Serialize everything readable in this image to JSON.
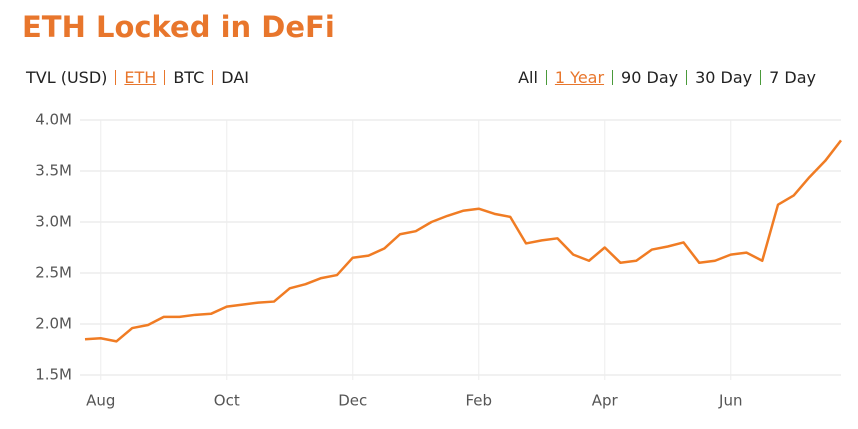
{
  "header": {
    "title": "ETH Locked in DeFi",
    "asset_tabs": [
      {
        "label": "TVL (USD)",
        "active": false
      },
      {
        "label": "ETH",
        "active": true
      },
      {
        "label": "BTC",
        "active": false
      },
      {
        "label": "DAI",
        "active": false
      }
    ],
    "range_tabs": [
      {
        "label": "All",
        "active": false
      },
      {
        "label": "1 Year",
        "active": true
      },
      {
        "label": "90 Day",
        "active": false
      },
      {
        "label": "30 Day",
        "active": false
      },
      {
        "label": "7 Day",
        "active": false
      }
    ]
  },
  "chart_data": {
    "type": "line",
    "color": "#f07c24",
    "grid": true,
    "categories": [
      null,
      "Aug",
      null,
      null,
      null,
      null,
      null,
      null,
      null,
      "Oct",
      null,
      null,
      null,
      null,
      null,
      null,
      null,
      "Dec",
      null,
      null,
      null,
      null,
      null,
      null,
      null,
      "Feb",
      null,
      null,
      null,
      null,
      null,
      null,
      null,
      "Apr",
      null,
      null,
      null,
      null,
      null,
      null,
      null,
      "Jun",
      null,
      null,
      null,
      null,
      null,
      null,
      null
    ],
    "values": [
      1850000,
      1860000,
      1830000,
      1960000,
      1990000,
      2070000,
      2070000,
      2090000,
      2100000,
      2170000,
      2190000,
      2210000,
      2220000,
      2350000,
      2390000,
      2450000,
      2480000,
      2650000,
      2670000,
      2740000,
      2880000,
      2910000,
      3000000,
      3060000,
      3110000,
      3130000,
      3080000,
      3050000,
      2790000,
      2820000,
      2840000,
      2680000,
      2620000,
      2750000,
      2600000,
      2620000,
      2730000,
      2760000,
      2800000,
      2600000,
      2620000,
      2680000,
      2700000,
      2620000,
      3170000,
      3260000,
      3440000,
      3600000,
      3800000
    ],
    "ylim": [
      1500000,
      4000000
    ],
    "yticks": [
      {
        "value": 1500000,
        "label": "1.5M"
      },
      {
        "value": 2000000,
        "label": "2.0M"
      },
      {
        "value": 2500000,
        "label": "2.5M"
      },
      {
        "value": 3000000,
        "label": "3.0M"
      },
      {
        "value": 3500000,
        "label": "3.5M"
      },
      {
        "value": 4000000,
        "label": "4.0M"
      }
    ]
  }
}
